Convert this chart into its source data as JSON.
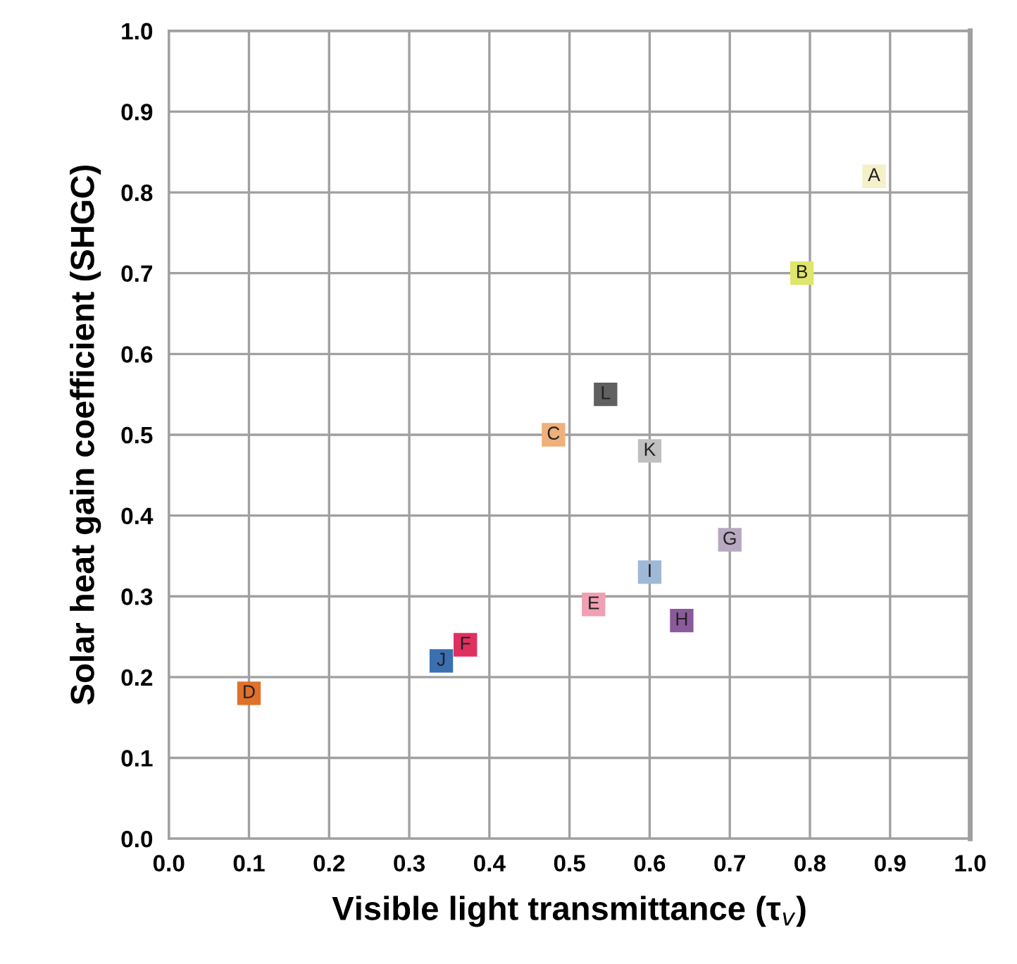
{
  "chart_data": {
    "type": "scatter",
    "xlabel": "Visible light transmittance (τ$_{v}$)",
    "ylabel": "Solar heat gain coefficient (SHGC)",
    "xlim": [
      0,
      1
    ],
    "ylim": [
      0,
      1
    ],
    "xticks": [
      {
        "value": 0,
        "label": "0.0"
      },
      0.1,
      0.2,
      0.3,
      0.4,
      0.5,
      0.6,
      0.7,
      0.8,
      0.9,
      {
        "value": 1,
        "label": "1.0"
      }
    ],
    "yticks": [
      {
        "value": 0,
        "label": "0.0"
      },
      0.1,
      0.2,
      0.3,
      0.4,
      0.5,
      0.6,
      0.7,
      0.8,
      0.9,
      {
        "value": 1,
        "label": "1.0"
      }
    ],
    "grid": true,
    "legend": false,
    "marker": "square",
    "series": [
      {
        "name": "A",
        "color": "#f4f0c8",
        "x": [
          0.88
        ],
        "values": [
          0.82
        ]
      },
      {
        "name": "B",
        "color": "#dfe66a",
        "x": [
          0.79
        ],
        "values": [
          0.7
        ]
      },
      {
        "name": "C",
        "color": "#f0b07a",
        "x": [
          0.48
        ],
        "values": [
          0.5
        ]
      },
      {
        "name": "D",
        "color": "#e0702a",
        "x": [
          0.1
        ],
        "values": [
          0.18
        ]
      },
      {
        "name": "E",
        "color": "#f0a0b4",
        "x": [
          0.53
        ],
        "values": [
          0.29
        ]
      },
      {
        "name": "F",
        "color": "#e03060",
        "x": [
          0.37
        ],
        "values": [
          0.24
        ]
      },
      {
        "name": "G",
        "color": "#b8a8c0",
        "x": [
          0.7
        ],
        "values": [
          0.37
        ]
      },
      {
        "name": "H",
        "color": "#8a5a9a",
        "x": [
          0.64
        ],
        "values": [
          0.27
        ]
      },
      {
        "name": "I",
        "color": "#a0b8d8",
        "x": [
          0.6
        ],
        "values": [
          0.33
        ]
      },
      {
        "name": "J",
        "color": "#3a70b0",
        "x": [
          0.34
        ],
        "values": [
          0.22
        ]
      },
      {
        "name": "K",
        "color": "#c0c0c0",
        "x": [
          0.6
        ],
        "values": [
          0.48
        ]
      },
      {
        "name": "L",
        "color": "#606060",
        "x": [
          0.545
        ],
        "values": [
          0.55
        ]
      }
    ]
  }
}
